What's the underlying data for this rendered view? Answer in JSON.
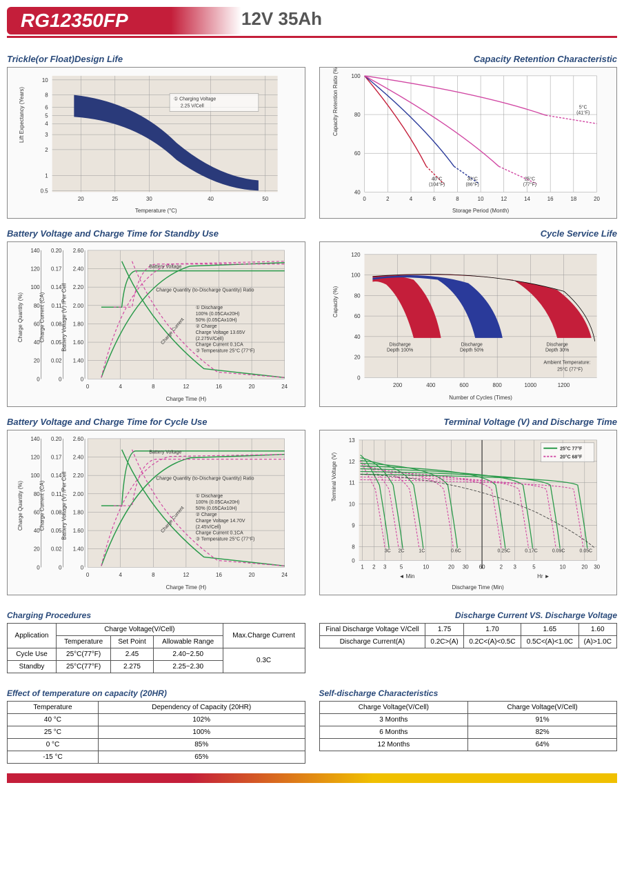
{
  "header": {
    "model": "RG12350FP",
    "spec": "12V  35Ah"
  },
  "chart1": {
    "title": "Trickle(or Float)Design Life",
    "ylabel": "Lift Expectancy (Years)",
    "xlabel": "Temperature (°C)",
    "xticks": [
      "20",
      "25",
      "30",
      "40",
      "50"
    ],
    "yticks": [
      "0.5",
      "1",
      "2",
      "3",
      "4",
      "5",
      "6",
      "8",
      "10"
    ],
    "legend": "① Charging Voltage\n2.25 V/Cell",
    "band_color": "#2a3a7a",
    "bg": "#eae4dc"
  },
  "chart2": {
    "title": "Capacity Retention Characteristic",
    "ylabel": "Capacity Retention Ratio (%)",
    "xlabel": "Storage Period (Month)",
    "xticks": [
      "0",
      "2",
      "4",
      "6",
      "8",
      "10",
      "12",
      "14",
      "16",
      "18",
      "20"
    ],
    "yticks": [
      "40",
      "60",
      "80",
      "100"
    ],
    "series": [
      {
        "label": "40°C\n(104°F)",
        "color": "#c41e3a",
        "x_end": 7
      },
      {
        "label": "30°C\n(86°F)",
        "color": "#2a3a9a",
        "x_end": 10
      },
      {
        "label": "25°C\n(77°F)",
        "color": "#d147a3",
        "x_end": 15
      },
      {
        "label": "5°C\n(41°F)",
        "color": "#d147a3",
        "x_end": 20,
        "y_end": 74
      }
    ]
  },
  "chart3": {
    "title": "Battery Voltage and Charge Time for Standby Use",
    "xlabel": "Charge Time (H)",
    "xticks": [
      "0",
      "4",
      "8",
      "12",
      "16",
      "20",
      "24"
    ],
    "y1": {
      "label": "Charge Quantity (%)",
      "ticks": [
        "0",
        "20",
        "40",
        "60",
        "80",
        "100",
        "120",
        "140"
      ]
    },
    "y2": {
      "label": "Charge Current (CA)",
      "ticks": [
        "0",
        "0.02",
        "0.05",
        "0.08",
        "0.11",
        "0.14",
        "0.17",
        "0.20"
      ]
    },
    "y3": {
      "label": "Battery Voltage (V) /Per Cell",
      "ticks": [
        "0",
        "1.40",
        "1.60",
        "1.80",
        "2.00",
        "2.20",
        "2.40",
        "2.60"
      ]
    },
    "annot": "① Discharge\n  100% (0.05CAx20H)\n  50% (0.05CAx10H)\n② Charge\n  Charge Voltage 13.65V\n  (2.275V/Cell)\n  Charge Current 0.1CA\n③ Temperature 25°C (77°F)",
    "curve_labels": [
      "Battery Voltage",
      "Charge Quantity (to-Discharge Quantity) Ratio",
      "Charge Current"
    ],
    "colors": {
      "solid": "#2a9a4a",
      "dash": "#d147a3"
    }
  },
  "chart4": {
    "title": "Cycle Service Life",
    "ylabel": "Capacity (%)",
    "xlabel": "Number of Cycles (Times)",
    "xticks": [
      "200",
      "400",
      "600",
      "800",
      "1000",
      "1200"
    ],
    "yticks": [
      "0",
      "20",
      "40",
      "60",
      "80",
      "100",
      "120"
    ],
    "bands": [
      {
        "label": "Discharge\nDepth 100%",
        "color": "#c41e3a",
        "x_center": 200
      },
      {
        "label": "Discharge\nDepth 50%",
        "color": "#2a3a9a",
        "x_center": 500
      },
      {
        "label": "Discharge\nDepth 30%",
        "color": "#c41e3a",
        "x_center": 1000
      }
    ],
    "ambient": "Ambient Temperature:\n25°C (77°F)"
  },
  "chart5": {
    "title": "Battery Voltage and Charge Time for Cycle Use",
    "xlabel": "Charge Time (H)",
    "annot": "① Discharge\n  100% (0.05CAx20H)\n  50% (0.05CAx10H)\n② Charge\n  Charge Voltage 14.70V\n  (2.45V/Cell)\n  Charge Current 0.1CA\n③ Temperature 25°C (77°F)"
  },
  "chart6": {
    "title": "Terminal Voltage (V) and Discharge Time",
    "ylabel": "Terminal Voltage (V)",
    "xlabel": "Discharge Time (Min)",
    "yticks": [
      "0",
      "8",
      "9",
      "10",
      "11",
      "12",
      "13"
    ],
    "xticks_min": [
      "1",
      "2",
      "3",
      "5",
      "10",
      "20",
      "30",
      "60"
    ],
    "xticks_hr": [
      "2",
      "3",
      "5",
      "10",
      "20",
      "30"
    ],
    "x_sections": [
      "Min",
      "Hr"
    ],
    "legend": [
      {
        "label": "25°C 77°F",
        "color": "#2a9a4a",
        "dash": false
      },
      {
        "label": "20°C 68°F",
        "color": "#d147a3",
        "dash": true
      }
    ],
    "curve_labels": [
      "3C",
      "2C",
      "1C",
      "0.6C",
      "0.25C",
      "0.17C",
      "0.09C",
      "0.05C"
    ]
  },
  "tables": {
    "charging": {
      "title": "Charging Procedures",
      "headers": [
        "Application",
        "Charge Voltage(V/Cell)",
        "Max.Charge Current"
      ],
      "subheaders": [
        "Temperature",
        "Set Point",
        "Allowable Range"
      ],
      "rows": [
        [
          "Cycle Use",
          "25°C(77°F)",
          "2.45",
          "2.40~2.50",
          "0.3C"
        ],
        [
          "Standby",
          "25°C(77°F)",
          "2.275",
          "2.25~2.30",
          ""
        ]
      ]
    },
    "discharge_voltage": {
      "title": "Discharge Current VS. Discharge Voltage",
      "rows": [
        [
          "Final Discharge Voltage V/Cell",
          "1.75",
          "1.70",
          "1.65",
          "1.60"
        ],
        [
          "Discharge Current(A)",
          "0.2C>(A)",
          "0.2C<(A)<0.5C",
          "0.5C<(A)<1.0C",
          "(A)>1.0C"
        ]
      ]
    },
    "temp_effect": {
      "title": "Effect of temperature on capacity (20HR)",
      "headers": [
        "Temperature",
        "Dependency of Capacity (20HR)"
      ],
      "rows": [
        [
          "40 °C",
          "102%"
        ],
        [
          "25 °C",
          "100%"
        ],
        [
          "0 °C",
          "85%"
        ],
        [
          "-15 °C",
          "65%"
        ]
      ]
    },
    "self_discharge": {
      "title": "Self-discharge Characteristics",
      "headers": [
        "Charge Voltage(V/Cell)",
        "Charge Voltage(V/Cell)"
      ],
      "rows": [
        [
          "3 Months",
          "91%"
        ],
        [
          "6 Months",
          "82%"
        ],
        [
          "12 Months",
          "64%"
        ]
      ]
    }
  }
}
